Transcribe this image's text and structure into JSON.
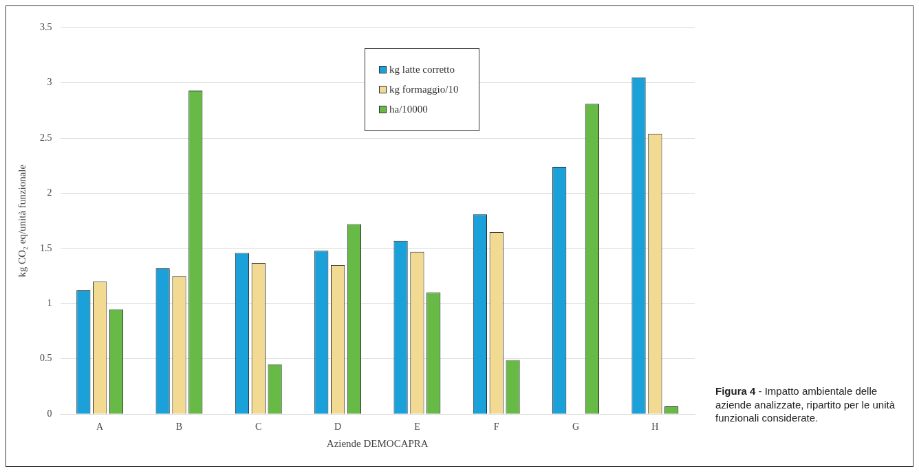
{
  "chart_data": {
    "type": "bar",
    "xlabel": "Aziende DEMOCAPRA",
    "ylabel": "kg CO₂ eq/unità funzionale",
    "categories": [
      "A",
      "B",
      "C",
      "D",
      "E",
      "F",
      "G",
      "H"
    ],
    "series": [
      {
        "name": "kg latte corretto",
        "color": "#1ba1d9",
        "values": [
          1.12,
          1.32,
          1.46,
          1.48,
          1.57,
          1.81,
          2.24,
          3.05
        ]
      },
      {
        "name": "kg formaggio/10",
        "color": "#f2da92",
        "values": [
          1.2,
          1.25,
          1.37,
          1.35,
          1.47,
          1.65,
          null,
          2.54
        ]
      },
      {
        "name": "ha/10000",
        "color": "#66ba45",
        "values": [
          0.95,
          2.93,
          0.45,
          1.72,
          1.1,
          0.49,
          2.81,
          0.07
        ]
      }
    ],
    "ylim": [
      0,
      3.5
    ],
    "yticks": [
      0,
      0.5,
      1,
      1.5,
      2,
      2.5,
      3,
      3.5
    ],
    "grid": "y",
    "legend": "top",
    "annotations": [
      "**Figura 4** - Impatto ambientale delle aziende analizzate, ripartito per le unità funzionali considerate."
    ]
  }
}
